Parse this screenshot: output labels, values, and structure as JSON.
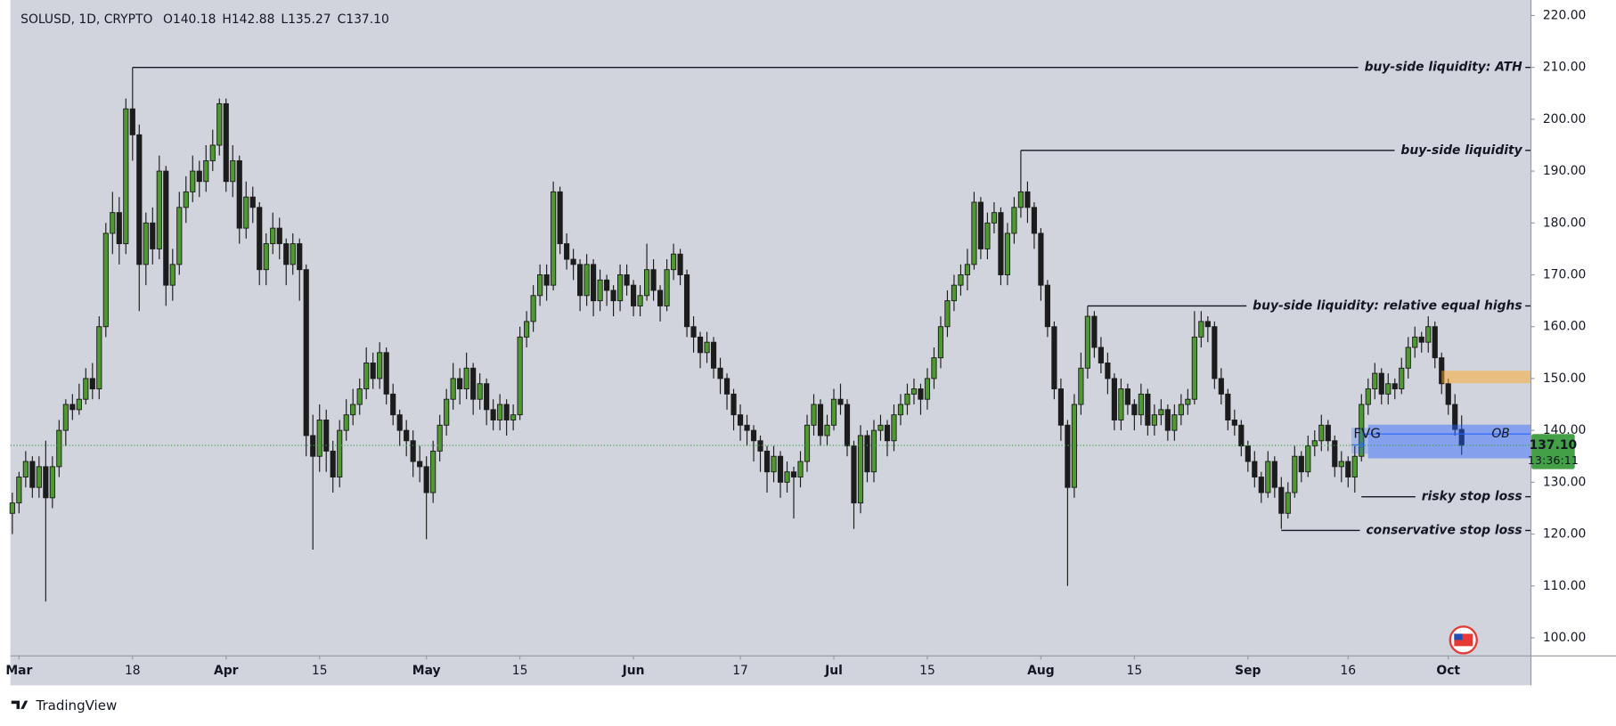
{
  "chart_data": {
    "type": "candlestick",
    "symbol": "SOLUSD, 1D, CRYPTO",
    "readout": [
      {
        "label": "O",
        "value": "140.18"
      },
      {
        "label": "H",
        "value": "142.88"
      },
      {
        "label": "L",
        "value": "135.27"
      },
      {
        "label": "C",
        "value": "137.10"
      }
    ],
    "colors": {
      "up": "#4e9a31",
      "down": "#1c1c1c",
      "wick": "#1c1c1c",
      "background": "#d1d4dc"
    },
    "grid": false,
    "xlim": [
      -0.3,
      227.3
    ],
    "xticks": [
      {
        "value": 1,
        "label": "Mar"
      },
      {
        "value": 18,
        "label": "18"
      },
      {
        "value": 32,
        "label": "Apr"
      },
      {
        "value": 46,
        "label": "15"
      },
      {
        "value": 62,
        "label": "May"
      },
      {
        "value": 76,
        "label": "15"
      },
      {
        "value": 93,
        "label": "Jun"
      },
      {
        "value": 109,
        "label": "17"
      },
      {
        "value": 123,
        "label": "Jul"
      },
      {
        "value": 137,
        "label": "15"
      },
      {
        "value": 154,
        "label": "Aug"
      },
      {
        "value": 168,
        "label": "15"
      },
      {
        "value": 185,
        "label": "Sep"
      },
      {
        "value": 200,
        "label": "16"
      },
      {
        "value": 215,
        "label": "Oct"
      }
    ],
    "ylim": [
      96.6,
      223
    ],
    "yticks": [
      {
        "value": 100,
        "label": "100.00"
      },
      {
        "value": 110,
        "label": "110.00"
      },
      {
        "value": 120,
        "label": "120.00"
      },
      {
        "value": 130,
        "label": "130.00"
      },
      {
        "value": 140,
        "label": "140.00"
      },
      {
        "value": 150,
        "label": "150.00"
      },
      {
        "value": 160,
        "label": "160.00"
      },
      {
        "value": 170,
        "label": "170.00"
      },
      {
        "value": 180,
        "label": "180.00"
      },
      {
        "value": 190,
        "label": "190.00"
      },
      {
        "value": 200,
        "label": "200.00"
      },
      {
        "value": 210,
        "label": "210.00"
      },
      {
        "value": 220,
        "label": "220.00"
      }
    ],
    "ohlc": [
      [
        124,
        128,
        120,
        126
      ],
      [
        126,
        132,
        124,
        131
      ],
      [
        131,
        136,
        129,
        134
      ],
      [
        134,
        135,
        127,
        129
      ],
      [
        129,
        135,
        127,
        133
      ],
      [
        133,
        138,
        107,
        127
      ],
      [
        127,
        135,
        125,
        133
      ],
      [
        133,
        142,
        131,
        140
      ],
      [
        140,
        146,
        137,
        145
      ],
      [
        145,
        147,
        142,
        144
      ],
      [
        144,
        149,
        143,
        146
      ],
      [
        146,
        152,
        145,
        150
      ],
      [
        150,
        153,
        146,
        148
      ],
      [
        148,
        162,
        146,
        160
      ],
      [
        160,
        180,
        158,
        178
      ],
      [
        178,
        186,
        174,
        182
      ],
      [
        182,
        185,
        172,
        176
      ],
      [
        176,
        204,
        174,
        202
      ],
      [
        202,
        210,
        192,
        197
      ],
      [
        197,
        199,
        163,
        172
      ],
      [
        172,
        182,
        168,
        180
      ],
      [
        180,
        183,
        172,
        175
      ],
      [
        175,
        193,
        173,
        190
      ],
      [
        190,
        191,
        164,
        168
      ],
      [
        168,
        175,
        165,
        172
      ],
      [
        172,
        186,
        170,
        183
      ],
      [
        183,
        189,
        180,
        186
      ],
      [
        186,
        193,
        184,
        190
      ],
      [
        190,
        192,
        185,
        188
      ],
      [
        188,
        195,
        186,
        192
      ],
      [
        192,
        198,
        190,
        195
      ],
      [
        195,
        204,
        193,
        203
      ],
      [
        203,
        204,
        186,
        188
      ],
      [
        188,
        195,
        185,
        192
      ],
      [
        192,
        193,
        176,
        179
      ],
      [
        179,
        188,
        177,
        185
      ],
      [
        185,
        187,
        180,
        183
      ],
      [
        183,
        184,
        168,
        171
      ],
      [
        171,
        178,
        168,
        176
      ],
      [
        176,
        182,
        174,
        179
      ],
      [
        179,
        181,
        173,
        176
      ],
      [
        176,
        177,
        168,
        172
      ],
      [
        172,
        178,
        170,
        176
      ],
      [
        176,
        177,
        165,
        171
      ],
      [
        171,
        172,
        135,
        139
      ],
      [
        139,
        143,
        117,
        135
      ],
      [
        135,
        145,
        132,
        142
      ],
      [
        142,
        144,
        132,
        136
      ],
      [
        136,
        138,
        128,
        131
      ],
      [
        131,
        142,
        129,
        140
      ],
      [
        140,
        146,
        138,
        143
      ],
      [
        143,
        148,
        141,
        145
      ],
      [
        145,
        150,
        143,
        148
      ],
      [
        148,
        156,
        146,
        153
      ],
      [
        153,
        155,
        148,
        150
      ],
      [
        150,
        157,
        148,
        155
      ],
      [
        155,
        156,
        145,
        147
      ],
      [
        147,
        149,
        141,
        143
      ],
      [
        143,
        144,
        137,
        140
      ],
      [
        140,
        142,
        135,
        138
      ],
      [
        138,
        140,
        131,
        134
      ],
      [
        134,
        137,
        130,
        133
      ],
      [
        133,
        135,
        119,
        128
      ],
      [
        128,
        138,
        126,
        136
      ],
      [
        136,
        143,
        134,
        141
      ],
      [
        141,
        148,
        139,
        146
      ],
      [
        146,
        153,
        144,
        150
      ],
      [
        150,
        152,
        145,
        148
      ],
      [
        148,
        155,
        146,
        152
      ],
      [
        152,
        153,
        143,
        146
      ],
      [
        146,
        151,
        144,
        149
      ],
      [
        149,
        150,
        141,
        144
      ],
      [
        144,
        146,
        140,
        142
      ],
      [
        142,
        147,
        140,
        145
      ],
      [
        145,
        146,
        139,
        142
      ],
      [
        142,
        145,
        140,
        143
      ],
      [
        143,
        160,
        142,
        158
      ],
      [
        158,
        163,
        156,
        161
      ],
      [
        161,
        168,
        159,
        166
      ],
      [
        166,
        172,
        164,
        170
      ],
      [
        170,
        172,
        165,
        168
      ],
      [
        168,
        188,
        167,
        186
      ],
      [
        186,
        187,
        174,
        176
      ],
      [
        176,
        178,
        171,
        173
      ],
      [
        173,
        175,
        169,
        172
      ],
      [
        172,
        173,
        163,
        166
      ],
      [
        166,
        174,
        164,
        172
      ],
      [
        172,
        173,
        162,
        165
      ],
      [
        165,
        171,
        163,
        169
      ],
      [
        169,
        170,
        164,
        167
      ],
      [
        167,
        168,
        162,
        165
      ],
      [
        165,
        172,
        163,
        170
      ],
      [
        170,
        172,
        166,
        168
      ],
      [
        168,
        169,
        162,
        164
      ],
      [
        164,
        168,
        162,
        166
      ],
      [
        166,
        176,
        165,
        171
      ],
      [
        171,
        173,
        165,
        167
      ],
      [
        167,
        168,
        161,
        164
      ],
      [
        164,
        173,
        163,
        171
      ],
      [
        171,
        176,
        169,
        174
      ],
      [
        174,
        175,
        168,
        170
      ],
      [
        170,
        171,
        158,
        160
      ],
      [
        160,
        162,
        155,
        158
      ],
      [
        158,
        159,
        152,
        155
      ],
      [
        155,
        159,
        153,
        157
      ],
      [
        157,
        158,
        150,
        152
      ],
      [
        152,
        154,
        147,
        150
      ],
      [
        150,
        151,
        144,
        147
      ],
      [
        147,
        148,
        140,
        143
      ],
      [
        143,
        145,
        138,
        141
      ],
      [
        141,
        143,
        137,
        140
      ],
      [
        140,
        141,
        134,
        138
      ],
      [
        138,
        139,
        132,
        136
      ],
      [
        136,
        137,
        128,
        132
      ],
      [
        132,
        137,
        130,
        135
      ],
      [
        135,
        136,
        127,
        130
      ],
      [
        130,
        134,
        128,
        132
      ],
      [
        132,
        133,
        123,
        131
      ],
      [
        131,
        136,
        129,
        134
      ],
      [
        134,
        143,
        132,
        141
      ],
      [
        141,
        147,
        139,
        145
      ],
      [
        145,
        146,
        137,
        139
      ],
      [
        139,
        143,
        137,
        141
      ],
      [
        141,
        148,
        140,
        146
      ],
      [
        146,
        149,
        143,
        145
      ],
      [
        145,
        146,
        135,
        137
      ],
      [
        137,
        138,
        121,
        126
      ],
      [
        126,
        141,
        124,
        139
      ],
      [
        139,
        140,
        130,
        132
      ],
      [
        132,
        142,
        130,
        140
      ],
      [
        140,
        143,
        138,
        141
      ],
      [
        141,
        142,
        135,
        138
      ],
      [
        138,
        145,
        136,
        143
      ],
      [
        143,
        147,
        141,
        145
      ],
      [
        145,
        149,
        143,
        147
      ],
      [
        147,
        150,
        145,
        148
      ],
      [
        148,
        149,
        143,
        146
      ],
      [
        146,
        152,
        144,
        150
      ],
      [
        150,
        156,
        148,
        154
      ],
      [
        154,
        162,
        152,
        160
      ],
      [
        160,
        167,
        158,
        165
      ],
      [
        165,
        170,
        163,
        168
      ],
      [
        168,
        172,
        166,
        170
      ],
      [
        170,
        175,
        167,
        172
      ],
      [
        172,
        186,
        171,
        184
      ],
      [
        184,
        185,
        173,
        175
      ],
      [
        175,
        182,
        173,
        180
      ],
      [
        180,
        184,
        178,
        182
      ],
      [
        182,
        183,
        168,
        170
      ],
      [
        170,
        180,
        168,
        178
      ],
      [
        178,
        185,
        176,
        183
      ],
      [
        183,
        194,
        181,
        186
      ],
      [
        186,
        188,
        180,
        183
      ],
      [
        183,
        184,
        175,
        178
      ],
      [
        178,
        179,
        165,
        168
      ],
      [
        168,
        169,
        158,
        160
      ],
      [
        160,
        161,
        146,
        148
      ],
      [
        148,
        150,
        138,
        141
      ],
      [
        141,
        142,
        110,
        129
      ],
      [
        129,
        147,
        127,
        145
      ],
      [
        145,
        155,
        143,
        152
      ],
      [
        152,
        164,
        150,
        162
      ],
      [
        162,
        163,
        154,
        156
      ],
      [
        156,
        158,
        151,
        153
      ],
      [
        153,
        155,
        147,
        150
      ],
      [
        150,
        151,
        140,
        142
      ],
      [
        142,
        150,
        140,
        148
      ],
      [
        148,
        149,
        143,
        145
      ],
      [
        145,
        146,
        140,
        143
      ],
      [
        143,
        149,
        141,
        147
      ],
      [
        147,
        148,
        139,
        141
      ],
      [
        141,
        145,
        139,
        143
      ],
      [
        143,
        146,
        141,
        144
      ],
      [
        144,
        145,
        138,
        140
      ],
      [
        140,
        145,
        138,
        143
      ],
      [
        143,
        147,
        141,
        145
      ],
      [
        145,
        148,
        143,
        146
      ],
      [
        146,
        163,
        145,
        158
      ],
      [
        158,
        163,
        156,
        161
      ],
      [
        161,
        162,
        157,
        160
      ],
      [
        160,
        161,
        148,
        150
      ],
      [
        150,
        152,
        145,
        147
      ],
      [
        147,
        148,
        140,
        142
      ],
      [
        142,
        144,
        139,
        141
      ],
      [
        141,
        142,
        135,
        137
      ],
      [
        137,
        138,
        132,
        134
      ],
      [
        134,
        136,
        129,
        131
      ],
      [
        131,
        132,
        126,
        128
      ],
      [
        128,
        136,
        127,
        134
      ],
      [
        134,
        135,
        127,
        129
      ],
      [
        129,
        131,
        121,
        124
      ],
      [
        124,
        130,
        123,
        128
      ],
      [
        128,
        137,
        127,
        135
      ],
      [
        135,
        136,
        130,
        132
      ],
      [
        132,
        139,
        131,
        137
      ],
      [
        137,
        140,
        135,
        138
      ],
      [
        138,
        143,
        136,
        141
      ],
      [
        141,
        142,
        136,
        138
      ],
      [
        138,
        139,
        131,
        133
      ],
      [
        133,
        136,
        130,
        134
      ],
      [
        134,
        135,
        129,
        131
      ],
      [
        131,
        137,
        128,
        135
      ],
      [
        135,
        147,
        134,
        145
      ],
      [
        145,
        150,
        143,
        148
      ],
      [
        148,
        153,
        146,
        151
      ],
      [
        151,
        152,
        145,
        147
      ],
      [
        147,
        151,
        145,
        149
      ],
      [
        149,
        150,
        146,
        148
      ],
      [
        148,
        154,
        147,
        152
      ],
      [
        152,
        158,
        150,
        156
      ],
      [
        156,
        160,
        154,
        158
      ],
      [
        158,
        159,
        155,
        157
      ],
      [
        157,
        162,
        155,
        160
      ],
      [
        160,
        161,
        152,
        154
      ],
      [
        154,
        155,
        147,
        149
      ],
      [
        149,
        150,
        143,
        145
      ],
      [
        145,
        147,
        139,
        140.18
      ],
      [
        140.18,
        142.88,
        135.27,
        137.1
      ]
    ],
    "last_price": {
      "label": "137.10",
      "countdown": "13:36:11",
      "color": "#43a047"
    },
    "annotations": [
      {
        "text": "buy-side liquidity: ATH",
        "y": 210,
        "x_from": 18
      },
      {
        "text": "buy-side liquidity",
        "y": 194,
        "x_from": 151
      },
      {
        "text": "buy-side liquidity: relative equal highs",
        "y": 164,
        "x_from": 161
      },
      {
        "text": "risky stop loss",
        "y": 127.2,
        "x_from": 202
      },
      {
        "text": "conservative stop loss",
        "y": 120.7,
        "x_from": 190
      }
    ],
    "zones": [
      {
        "y_range": [
          149.1,
          151.5
        ],
        "x_from": 214,
        "color": "rgba(255,167,38,0.5)"
      },
      {
        "label": "OB",
        "y_range": [
          134.6,
          141.1
        ],
        "x_from": 203,
        "line_y": 139.3,
        "color": "rgba(41,98,255,0.45)"
      }
    ],
    "fvg": {
      "label": "FVG",
      "y_range": [
        135.5,
        140.5
      ],
      "x_from": 200.5,
      "x_to": 203
    }
  },
  "branding": "TradingView"
}
